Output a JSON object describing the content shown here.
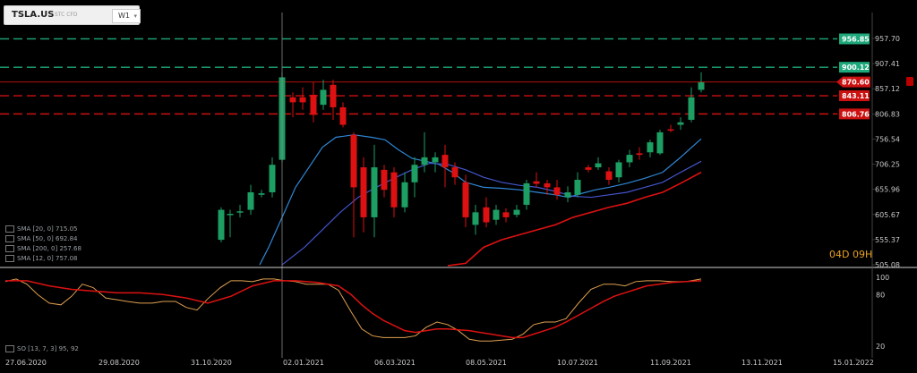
{
  "symbol": {
    "ticker": "TSLA.US",
    "exchange": "STC CFD",
    "timeframe": "W1",
    "timeframe_arrow": "▾"
  },
  "countdown": {
    "days": "04D",
    "hours": "09H"
  },
  "price_axis": [
    "957.70",
    "907.41",
    "857.12",
    "806.83",
    "756.54",
    "706.25",
    "655.96",
    "605.67",
    "555.37",
    "505.08"
  ],
  "price_tags": [
    {
      "label": "956.85",
      "color": "#1ea97c"
    },
    {
      "label": "900.12",
      "color": "#1ea97c"
    },
    {
      "label": "870.60",
      "color": "#cc1111"
    },
    {
      "label": "843.11",
      "color": "#cc1111"
    },
    {
      "label": "806.76",
      "color": "#cc1111"
    }
  ],
  "indicator_axis": [
    "100",
    "80",
    "20"
  ],
  "date_axis": [
    "27.06.2020",
    "29.08.2020",
    "31.10.2020",
    "02.01.2021",
    "06.03.2021",
    "08.05.2021",
    "10.07.2021",
    "11.09.2021",
    "13.11.2021",
    "15.01.2022"
  ],
  "legend": [
    "SMA [20, 0] 715.05",
    "SMA [50, 0] 692.84",
    "SMA [200, 0] 257.68",
    "SMA [12, 0] 757.08"
  ],
  "indicator_legend": "SO [13, 7, 3] 95, 92",
  "colors": {
    "bull": "#1d9e63",
    "bear": "#dd1111",
    "sma20": "#2f87d6",
    "sma50": "#4455cc",
    "sma200": "#dd1111",
    "stoch_k": "#e0a050",
    "stoch_d": "#dd1111",
    "level_green": "#1ea97c",
    "level_red": "#cc1111",
    "axis_text": "#c8c8c8"
  }
}
